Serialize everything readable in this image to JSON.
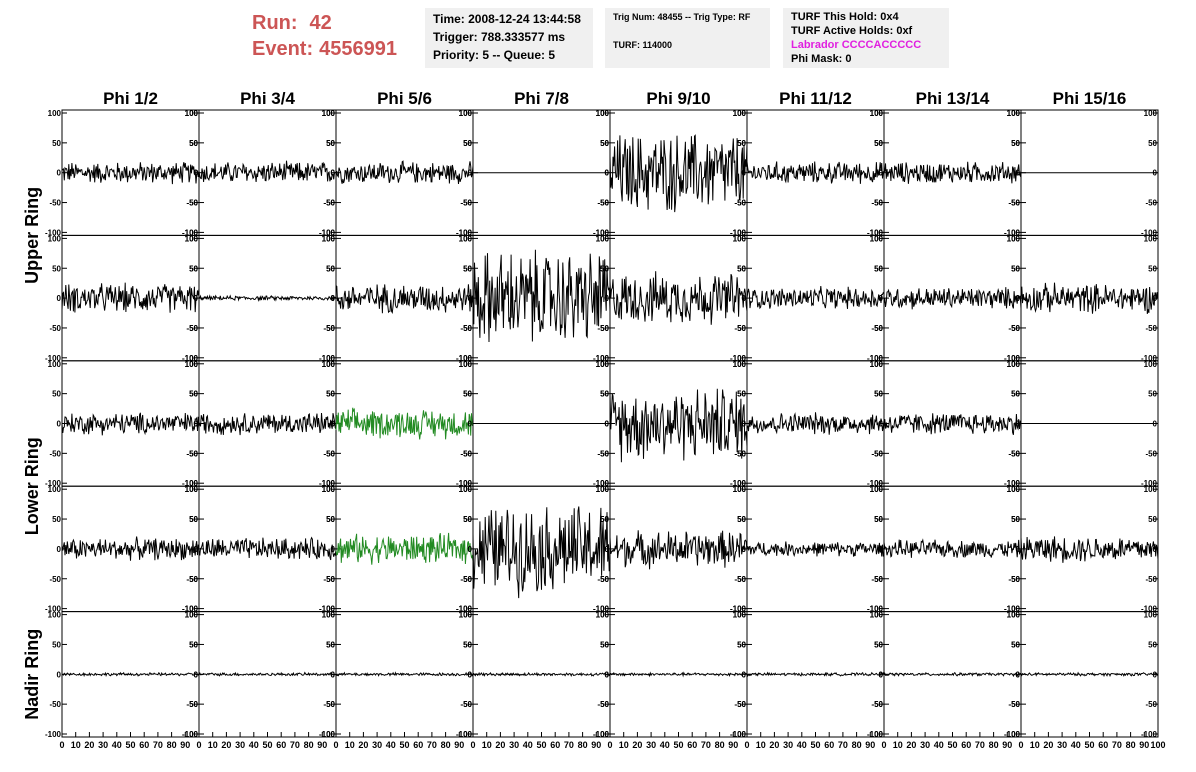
{
  "header": {
    "run_label": "Run:",
    "run_value": "42",
    "event_label": "Event:",
    "event_value": "4556991",
    "time": "Time: 2008-12-24 13:44:58",
    "trigger": "Trigger: 788.333577 ms",
    "priority": "Priority: 5 -- Queue: 5",
    "trig_num": "Trig Num: 48455 -- Trig Type: RF",
    "turf": "TURF: 114000",
    "turf_this_hold": "TURF This Hold: 0x4",
    "turf_active_holds": "TURF Active Holds: 0xf",
    "labrador": "Labrador CCCCACCCCC",
    "phi_mask": "Phi Mask: 0"
  },
  "colors": {
    "run_text": "#cc5555",
    "labrador_text": "#e020e0",
    "highlight_trace": "#228b22",
    "trace": "#000000"
  },
  "chart_data": {
    "type": "line",
    "description_of_grid": "5 rows x 8 columns of waveform panels",
    "column_titles": [
      "Phi 1/2",
      "Phi 3/4",
      "Phi 5/6",
      "Phi 7/8",
      "Phi 9/10",
      "Phi 11/12",
      "Phi 13/14",
      "Phi 15/16"
    ],
    "row_group_labels": [
      "Upper Ring",
      "Lower Ring",
      "Nadir Ring"
    ],
    "xlim": [
      0,
      100
    ],
    "ylim": [
      -100,
      100
    ],
    "y_ticks": [
      100,
      50,
      0,
      -50,
      -100
    ],
    "x_ticks": [
      0,
      10,
      20,
      30,
      40,
      50,
      60,
      70,
      80,
      90,
      100
    ],
    "amplitude_rows": [
      [
        15,
        15,
        15,
        0,
        55,
        15,
        15,
        0
      ],
      [
        20,
        3,
        20,
        65,
        35,
        15,
        15,
        20
      ],
      [
        15,
        15,
        20,
        0,
        50,
        15,
        15,
        0
      ],
      [
        15,
        15,
        20,
        60,
        25,
        10,
        12,
        18
      ],
      [
        2,
        2,
        2,
        2,
        2,
        2,
        2,
        2
      ]
    ],
    "highlighted_panels": [
      [
        2,
        2
      ],
      [
        3,
        2
      ]
    ]
  }
}
